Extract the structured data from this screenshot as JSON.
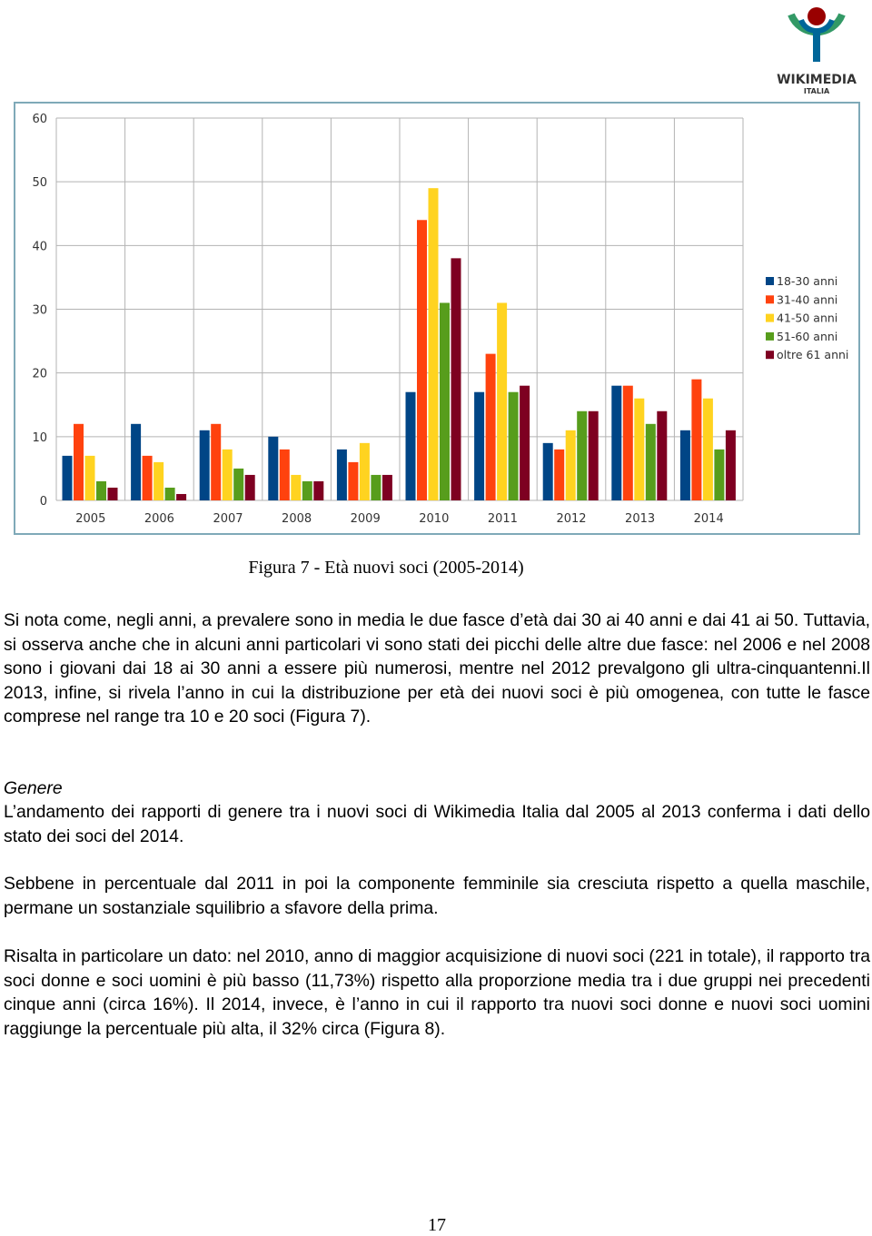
{
  "logo": {
    "name": "WIKIMEDIA",
    "country": "ITALIA"
  },
  "chart_data": {
    "type": "bar",
    "categories": [
      "2005",
      "2006",
      "2007",
      "2008",
      "2009",
      "2010",
      "2011",
      "2012",
      "2013",
      "2014"
    ],
    "series": [
      {
        "name": "18-30 anni",
        "color": "#004586",
        "values": [
          7,
          12,
          11,
          10,
          8,
          17,
          17,
          9,
          18,
          11
        ]
      },
      {
        "name": "31-40 anni",
        "color": "#ff420e",
        "values": [
          12,
          7,
          12,
          8,
          6,
          44,
          23,
          8,
          18,
          19
        ]
      },
      {
        "name": "41-50 anni",
        "color": "#ffd320",
        "values": [
          7,
          6,
          8,
          4,
          9,
          49,
          31,
          11,
          16,
          16
        ]
      },
      {
        "name": "51-60 anni",
        "color": "#579d1c",
        "values": [
          3,
          2,
          5,
          3,
          4,
          31,
          17,
          14,
          12,
          8
        ]
      },
      {
        "name": "oltre 61 anni",
        "color": "#7e0021",
        "values": [
          2,
          1,
          4,
          3,
          4,
          38,
          18,
          14,
          14,
          11
        ]
      }
    ],
    "ylim": [
      0,
      60
    ],
    "yticks": [
      0,
      10,
      20,
      30,
      40,
      50,
      60
    ],
    "grid": true,
    "legend": "right"
  },
  "caption": "Figura 7 - Età nuovi soci (2005-2014)",
  "paragraphs": [
    "Si nota come, negli anni, a prevalere sono in media le due fasce d’età dai 30 ai 40 anni e dai 41 ai 50. Tuttavia, si osserva anche che in alcuni anni particolari vi sono stati dei picchi delle altre due fasce: nel 2006 e nel 2008 sono i giovani dai 18 ai 30 anni a essere più numerosi, mentre nel 2012 prevalgono gli ultra-cinquantenni.Il 2013, infine, si rivela l’anno in cui la distribuzione per età dei nuovi soci è più omogenea, con tutte le fasce comprese nel range tra 10 e 20 soci (Figura 7).",
    "L’andamento dei rapporti di genere tra i nuovi soci di Wikimedia Italia dal 2005 al 2013 conferma i dati dello stato dei soci del 2014.",
    "Sebbene in percentuale dal 2011 in poi la componente femminile sia cresciuta rispetto a quella maschile, permane un sostanziale squilibrio a sfavore della prima.",
    "Risalta in particolare un dato: nel 2010, anno di maggior acquisizione di nuovi soci (221 in totale), il rapporto tra soci donne e soci uomini è più basso (11,73%) rispetto alla proporzione media tra i due gruppi nei precedenti cinque anni (circa 16%). Il 2014, invece, è l’anno in cui il rapporto tra nuovi soci donne e nuovi soci uomini raggiunge la percentuale più alta, il 32% circa (Figura 8)."
  ],
  "heading": "Genere",
  "page_number": "17"
}
